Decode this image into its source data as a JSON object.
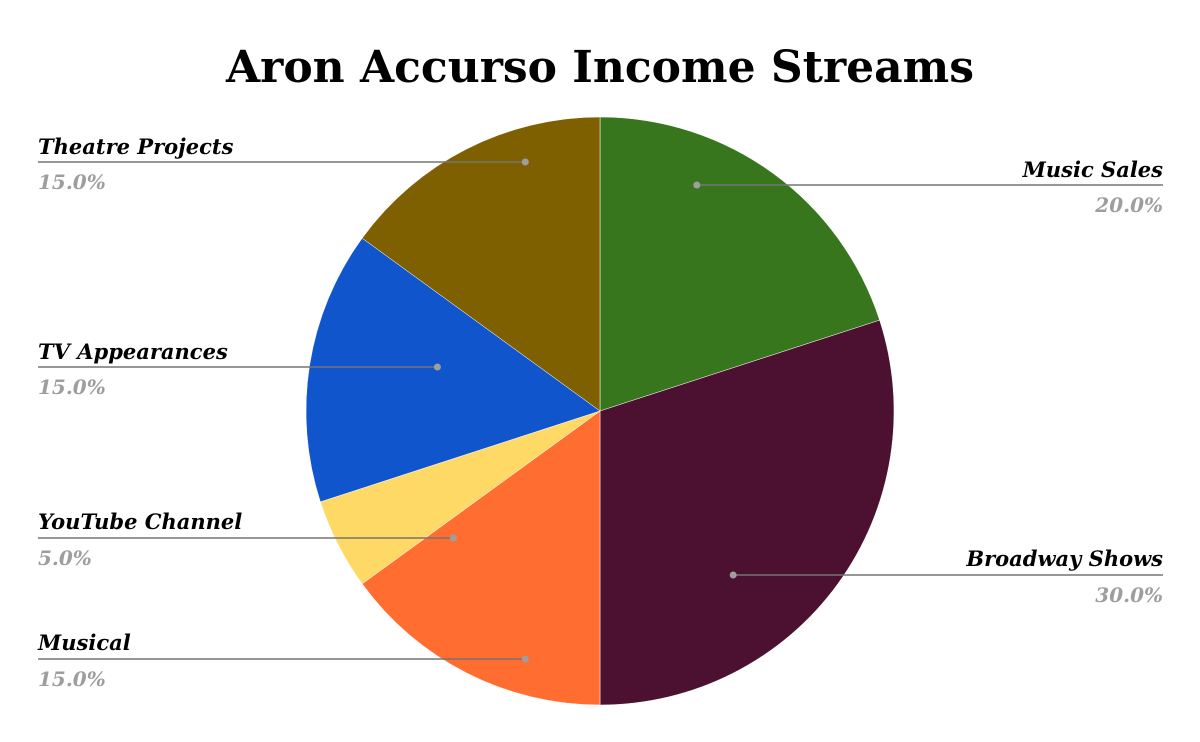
{
  "chart_data": {
    "type": "pie",
    "title": "Aron Accurso Income Streams",
    "slices": [
      {
        "label": "Music Sales",
        "value": 20.0,
        "value_label": "20.0%",
        "color": "#38761d"
      },
      {
        "label": "Broadway Shows",
        "value": 30.0,
        "value_label": "30.0%",
        "color": "#4c1130"
      },
      {
        "label": "Musical",
        "value": 15.0,
        "value_label": "15.0%",
        "color": "#ff6d31"
      },
      {
        "label": "YouTube Channel",
        "value": 5.0,
        "value_label": "5.0%",
        "color": "#ffd966"
      },
      {
        "label": "TV Appearances",
        "value": 15.0,
        "value_label": "15.0%",
        "color": "#1155cc"
      },
      {
        "label": "Theatre Projects",
        "value": 15.0,
        "value_label": "15.0%",
        "color": "#7f6000"
      }
    ],
    "start_angle_deg": 0,
    "direction": "clockwise",
    "legend": "none",
    "labels": "outside-with-leader-lines"
  }
}
